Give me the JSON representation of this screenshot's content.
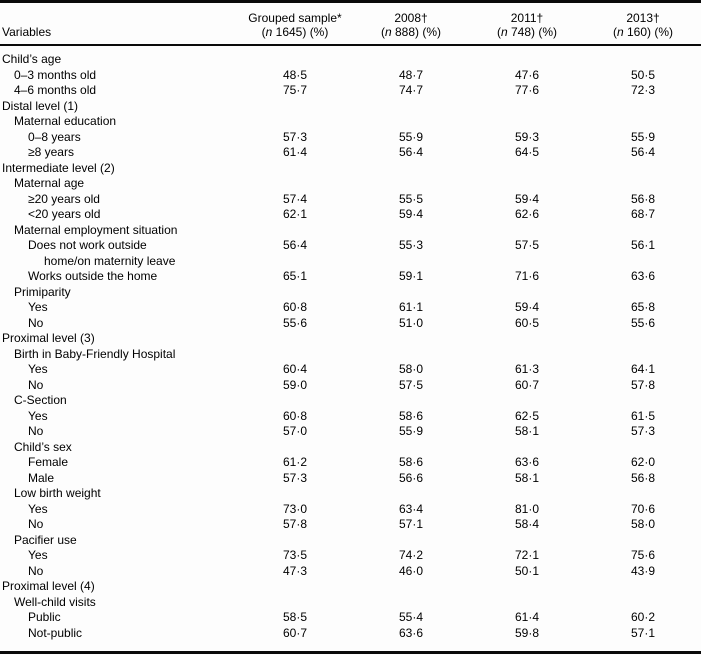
{
  "table": {
    "header": {
      "variables_label": "Variables",
      "columns": [
        {
          "title": "Grouped sample*",
          "sub_open": "(",
          "sub_n": "n",
          "sub_rest": " 1645) (%)"
        },
        {
          "title": "2008†",
          "sub_open": "(",
          "sub_n": "n",
          "sub_rest": " 888) (%)"
        },
        {
          "title": "2011†",
          "sub_open": "(",
          "sub_n": "n",
          "sub_rest": " 748) (%)"
        },
        {
          "title": "2013†",
          "sub_open": "(",
          "sub_n": "n",
          "sub_rest": " 160) (%)"
        }
      ]
    },
    "rows": [
      {
        "label": "Child’s age",
        "indent": 0,
        "values": []
      },
      {
        "label": "0–3 months old",
        "indent": 1,
        "values": [
          "48·5",
          "48·7",
          "47·6",
          "50·5"
        ]
      },
      {
        "label": "4–6 months old",
        "indent": 1,
        "values": [
          "75·7",
          "74·7",
          "77·6",
          "72·3"
        ]
      },
      {
        "label": "Distal level (1)",
        "indent": 0,
        "values": []
      },
      {
        "label": "Maternal education",
        "indent": 1,
        "values": []
      },
      {
        "label": "0–8 years",
        "indent": 2,
        "values": [
          "57·3",
          "55·9",
          "59·3",
          "55·9"
        ]
      },
      {
        "label": "≥8 years",
        "indent": 2,
        "values": [
          "61·4",
          "56·4",
          "64·5",
          "56·4"
        ]
      },
      {
        "label": "Intermediate level (2)",
        "indent": 0,
        "values": []
      },
      {
        "label": "Maternal age",
        "indent": 1,
        "values": []
      },
      {
        "label": "≥20 years old",
        "indent": 2,
        "values": [
          "57·4",
          "55·5",
          "59·4",
          "56·8"
        ]
      },
      {
        "label": "<20 years old",
        "indent": 2,
        "values": [
          "62·1",
          "59·4",
          "62·6",
          "68·7"
        ]
      },
      {
        "label": "Maternal employment situation",
        "indent": 1,
        "values": []
      },
      {
        "label": "Does not work outside",
        "indent": 2,
        "values": [
          "56·4",
          "55·3",
          "57·5",
          "56·1"
        ]
      },
      {
        "label": "home/on maternity leave",
        "indent": 3,
        "values": []
      },
      {
        "label": "Works outside the home",
        "indent": 2,
        "values": [
          "65·1",
          "59·1",
          "71·6",
          "63·6"
        ]
      },
      {
        "label": "Primiparity",
        "indent": 1,
        "values": []
      },
      {
        "label": "Yes",
        "indent": 2,
        "values": [
          "60·8",
          "61·1",
          "59·4",
          "65·8"
        ]
      },
      {
        "label": "No",
        "indent": 2,
        "values": [
          "55·6",
          "51·0",
          "60·5",
          "55·6"
        ]
      },
      {
        "label": "Proximal level (3)",
        "indent": 0,
        "values": []
      },
      {
        "label": "Birth in Baby-Friendly Hospital",
        "indent": 1,
        "values": []
      },
      {
        "label": "Yes",
        "indent": 2,
        "values": [
          "60·4",
          "58·0",
          "61·3",
          "64·1"
        ]
      },
      {
        "label": "No",
        "indent": 2,
        "values": [
          "59·0",
          "57·5",
          "60·7",
          "57·8"
        ]
      },
      {
        "label": "C-Section",
        "indent": 1,
        "values": []
      },
      {
        "label": "Yes",
        "indent": 2,
        "values": [
          "60·8",
          "58·6",
          "62·5",
          "61·5"
        ]
      },
      {
        "label": "No",
        "indent": 2,
        "values": [
          "57·0",
          "55·9",
          "58·1",
          "57·3"
        ]
      },
      {
        "label": "Child’s sex",
        "indent": 1,
        "values": []
      },
      {
        "label": "Female",
        "indent": 2,
        "values": [
          "61·2",
          "58·6",
          "63·6",
          "62·0"
        ]
      },
      {
        "label": "Male",
        "indent": 2,
        "values": [
          "57·3",
          "56·6",
          "58·1",
          "56·8"
        ]
      },
      {
        "label": "Low birth weight",
        "indent": 1,
        "values": []
      },
      {
        "label": "Yes",
        "indent": 2,
        "values": [
          "73·0",
          "63·4",
          "81·0",
          "70·6"
        ]
      },
      {
        "label": "No",
        "indent": 2,
        "values": [
          "57·8",
          "57·1",
          "58·4",
          "58·0"
        ]
      },
      {
        "label": "Pacifier use",
        "indent": 1,
        "values": []
      },
      {
        "label": "Yes",
        "indent": 2,
        "values": [
          "73·5",
          "74·2",
          "72·1",
          "75·6"
        ]
      },
      {
        "label": "No",
        "indent": 2,
        "values": [
          "47·3",
          "46·0",
          "50·1",
          "43·9"
        ]
      },
      {
        "label": "Proximal level (4)",
        "indent": 0,
        "values": []
      },
      {
        "label": "Well-child visits",
        "indent": 1,
        "values": []
      },
      {
        "label": "Public",
        "indent": 2,
        "values": [
          "58·5",
          "55·4",
          "61·4",
          "60·2"
        ]
      },
      {
        "label": "Not-public",
        "indent": 2,
        "values": [
          "60·7",
          "63·6",
          "59·8",
          "57·1"
        ]
      }
    ]
  }
}
